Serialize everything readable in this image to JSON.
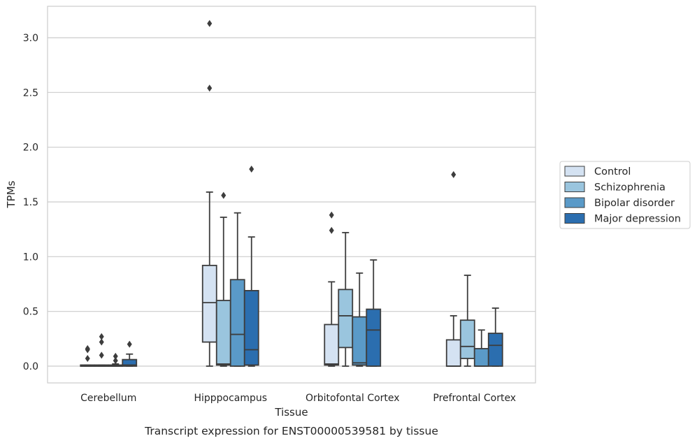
{
  "chart_data": {
    "type": "box",
    "title": "",
    "caption": "Transcript expression for ENST00000539581 by tissue",
    "xlabel": "Tissue",
    "ylabel": "TPMs",
    "ylim": [
      -0.15,
      3.3
    ],
    "yticks": [
      0.0,
      0.5,
      1.0,
      1.5,
      2.0,
      2.5,
      3.0
    ],
    "ytick_labels": [
      "0.0",
      "0.5",
      "1.0",
      "1.5",
      "2.0",
      "2.5",
      "3.0"
    ],
    "grid": "horizontal",
    "legend_position": "right",
    "categories": [
      "Cerebellum",
      "Hipppocampus",
      "Orbitofontal Cortex",
      "Prefrontal Cortex"
    ],
    "series": [
      {
        "name": "Control",
        "color": "#d4e2f2",
        "boxes": [
          {
            "whislo": 0.0,
            "q1": 0.0,
            "med": 0.0,
            "q3": 0.01,
            "whishi": 0.01,
            "fliers": [
              0.07,
              0.15,
              0.16
            ]
          },
          {
            "whislo": 0.0,
            "q1": 0.22,
            "med": 0.58,
            "q3": 0.92,
            "whishi": 1.59,
            "fliers": [
              2.54,
              3.13
            ]
          },
          {
            "whislo": 0.0,
            "q1": 0.01,
            "med": 0.02,
            "q3": 0.38,
            "whishi": 0.77,
            "fliers": [
              1.24,
              1.38
            ]
          },
          {
            "whislo": 0.0,
            "q1": 0.0,
            "med": 0.0,
            "q3": 0.24,
            "whishi": 0.46,
            "fliers": [
              1.75
            ]
          }
        ]
      },
      {
        "name": "Schizophrenia",
        "color": "#9ac5de",
        "boxes": [
          {
            "whislo": 0.0,
            "q1": 0.0,
            "med": 0.0,
            "q3": 0.01,
            "whishi": 0.01,
            "fliers": [
              0.1,
              0.22,
              0.27
            ]
          },
          {
            "whislo": 0.0,
            "q1": 0.01,
            "med": 0.02,
            "q3": 0.6,
            "whishi": 1.36,
            "fliers": [
              1.56
            ]
          },
          {
            "whislo": 0.0,
            "q1": 0.17,
            "med": 0.46,
            "q3": 0.7,
            "whishi": 1.22,
            "fliers": []
          },
          {
            "whislo": 0.0,
            "q1": 0.07,
            "med": 0.18,
            "q3": 0.42,
            "whishi": 0.83,
            "fliers": []
          }
        ]
      },
      {
        "name": "Bipolar disorder",
        "color": "#5a9ac8",
        "boxes": [
          {
            "whislo": 0.0,
            "q1": 0.0,
            "med": 0.0,
            "q3": 0.01,
            "whishi": 0.02,
            "fliers": [
              0.05,
              0.09
            ]
          },
          {
            "whislo": 0.0,
            "q1": 0.0,
            "med": 0.29,
            "q3": 0.79,
            "whishi": 1.4,
            "fliers": []
          },
          {
            "whislo": 0.0,
            "q1": 0.01,
            "med": 0.03,
            "q3": 0.45,
            "whishi": 0.85,
            "fliers": []
          },
          {
            "whislo": 0.0,
            "q1": 0.0,
            "med": 0.0,
            "q3": 0.16,
            "whishi": 0.33,
            "fliers": []
          }
        ]
      },
      {
        "name": "Major depression",
        "color": "#2b6eaf",
        "boxes": [
          {
            "whislo": 0.0,
            "q1": 0.0,
            "med": 0.01,
            "q3": 0.06,
            "whishi": 0.11,
            "fliers": [
              0.2
            ]
          },
          {
            "whislo": 0.0,
            "q1": 0.01,
            "med": 0.15,
            "q3": 0.69,
            "whishi": 1.18,
            "fliers": [
              1.8
            ]
          },
          {
            "whislo": 0.0,
            "q1": 0.0,
            "med": 0.33,
            "q3": 0.52,
            "whishi": 0.97,
            "fliers": []
          },
          {
            "whislo": 0.0,
            "q1": 0.0,
            "med": 0.19,
            "q3": 0.3,
            "whishi": 0.53,
            "fliers": []
          }
        ]
      }
    ]
  }
}
